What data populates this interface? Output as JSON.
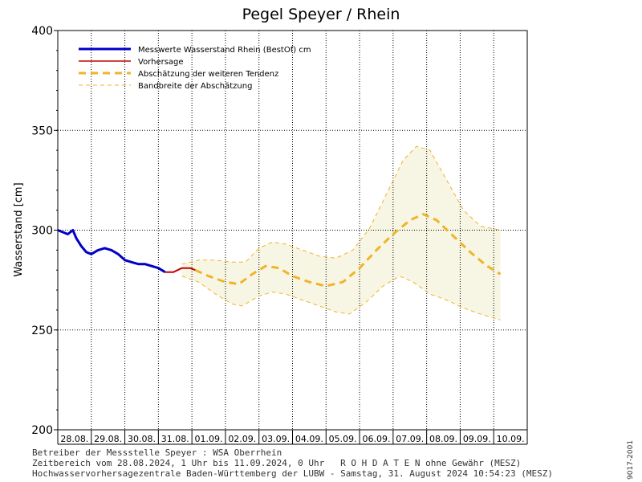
{
  "chart_data": {
    "type": "line",
    "title": "Pegel Speyer / Rhein",
    "ylabel": "Wasserstand [cm]",
    "ylim": [
      200,
      400
    ],
    "yticks": [
      200,
      250,
      300,
      350,
      400
    ],
    "grid": true,
    "legend_position": "top-left",
    "categories": [
      "28.08.",
      "29.08.",
      "30.08.",
      "31.08.",
      "01.09.",
      "02.09.",
      "03.09.",
      "04.09.",
      "05.09.",
      "06.09.",
      "07.09.",
      "08.09.",
      "09.09.",
      "10.09."
    ],
    "series": [
      {
        "name": "Messwerte Wasserstand Rhein (BestOf)  cm",
        "color": "#0000c8",
        "style": "solid-thick",
        "points": [
          [
            0.0,
            300
          ],
          [
            0.15,
            299
          ],
          [
            0.3,
            298
          ],
          [
            0.45,
            300
          ],
          [
            0.55,
            296
          ],
          [
            0.7,
            292
          ],
          [
            0.85,
            289
          ],
          [
            1.0,
            288
          ],
          [
            1.2,
            290
          ],
          [
            1.4,
            291
          ],
          [
            1.6,
            290
          ],
          [
            1.8,
            288
          ],
          [
            2.0,
            285
          ],
          [
            2.2,
            284
          ],
          [
            2.4,
            283
          ],
          [
            2.6,
            283
          ],
          [
            2.8,
            282
          ],
          [
            3.0,
            281
          ],
          [
            3.1,
            280
          ],
          [
            3.2,
            279
          ]
        ]
      },
      {
        "name": "Vorhersage",
        "color": "#c80000",
        "style": "solid",
        "points": [
          [
            3.2,
            279
          ],
          [
            3.45,
            279
          ],
          [
            3.7,
            281
          ],
          [
            3.95,
            281
          ],
          [
            4.1,
            280
          ]
        ]
      },
      {
        "name": "Abschätzung der weiteren Tendenz",
        "color": "#f0b428",
        "style": "dashed-thick",
        "points": [
          [
            4.1,
            280
          ],
          [
            4.5,
            277
          ],
          [
            5.0,
            274
          ],
          [
            5.4,
            273
          ],
          [
            5.8,
            278
          ],
          [
            6.2,
            282
          ],
          [
            6.6,
            281
          ],
          [
            7.0,
            277
          ],
          [
            7.5,
            274
          ],
          [
            8.0,
            272
          ],
          [
            8.5,
            274
          ],
          [
            9.0,
            281
          ],
          [
            9.5,
            290
          ],
          [
            10.0,
            298
          ],
          [
            10.5,
            305
          ],
          [
            10.9,
            308
          ],
          [
            11.3,
            305
          ],
          [
            11.8,
            297
          ],
          [
            12.3,
            289
          ],
          [
            12.8,
            282
          ],
          [
            13.2,
            278
          ]
        ]
      },
      {
        "name": "Bandbreite der Abschätzung",
        "color": "#f0b428",
        "style": "dashed-thin",
        "upper": [
          [
            3.7,
            283
          ],
          [
            4.2,
            285
          ],
          [
            4.7,
            285
          ],
          [
            5.2,
            284
          ],
          [
            5.6,
            284
          ],
          [
            6.0,
            291
          ],
          [
            6.4,
            294
          ],
          [
            6.8,
            293
          ],
          [
            7.3,
            290
          ],
          [
            7.8,
            287
          ],
          [
            8.3,
            286
          ],
          [
            8.8,
            290
          ],
          [
            9.3,
            301
          ],
          [
            9.8,
            318
          ],
          [
            10.3,
            335
          ],
          [
            10.7,
            342
          ],
          [
            11.1,
            340
          ],
          [
            11.6,
            325
          ],
          [
            12.1,
            310
          ],
          [
            12.6,
            302
          ],
          [
            13.2,
            300
          ]
        ],
        "lower": [
          [
            3.7,
            277
          ],
          [
            4.2,
            274
          ],
          [
            4.7,
            268
          ],
          [
            5.2,
            263
          ],
          [
            5.5,
            262
          ],
          [
            6.0,
            267
          ],
          [
            6.4,
            269
          ],
          [
            6.8,
            268
          ],
          [
            7.3,
            265
          ],
          [
            7.8,
            262
          ],
          [
            8.3,
            259
          ],
          [
            8.7,
            258
          ],
          [
            9.2,
            264
          ],
          [
            9.7,
            272
          ],
          [
            10.2,
            277
          ],
          [
            10.6,
            274
          ],
          [
            11.1,
            268
          ],
          [
            11.6,
            265
          ],
          [
            12.1,
            261
          ],
          [
            12.6,
            258
          ],
          [
            13.2,
            255
          ]
        ]
      }
    ]
  },
  "footer": {
    "line1": "Betreiber der Messstelle Speyer : WSA Oberrhein",
    "line2": "Zeitbereich vom 28.08.2024, 1 Uhr bis 11.09.2024, 0 Uhr   R O H D A T E N ohne Gewähr (MESZ)",
    "line3": "Hochwasservorhersagezentrale Baden-Württemberg der LUBW - Samstag, 31. August 2024 10:54:23 (MESZ)"
  },
  "side_id": "9017-2001"
}
